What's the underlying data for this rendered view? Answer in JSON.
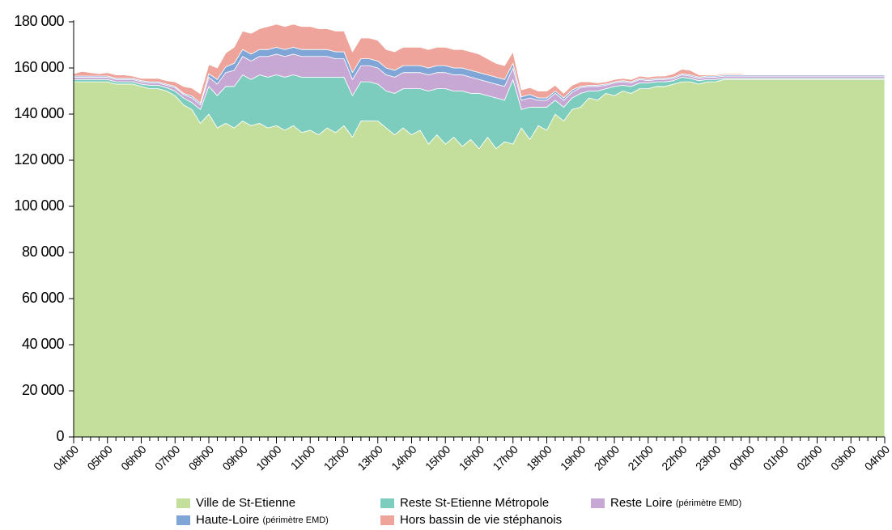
{
  "chart_data": {
    "type": "stacked_area",
    "categories": [
      "04h00",
      null,
      null,
      null,
      "05h00",
      null,
      null,
      null,
      "06h00",
      null,
      null,
      null,
      "07h00",
      null,
      null,
      null,
      "08h00",
      null,
      null,
      null,
      "09h00",
      null,
      null,
      null,
      "10h00",
      null,
      null,
      null,
      "11h00",
      null,
      null,
      null,
      "12h00",
      null,
      null,
      null,
      "13h00",
      null,
      null,
      null,
      "14h00",
      null,
      null,
      null,
      "15h00",
      null,
      null,
      null,
      "16h00",
      null,
      null,
      null,
      "17h00",
      null,
      null,
      null,
      "18h00",
      null,
      null,
      null,
      "19h00",
      null,
      null,
      null,
      "20h00",
      null,
      null,
      null,
      "21h00",
      null,
      null,
      null,
      "22h00",
      null,
      null,
      null,
      "23h00",
      null,
      null,
      null,
      "00h00",
      null,
      null,
      null,
      "01h00",
      null,
      null,
      null,
      "02h00",
      null,
      null,
      null,
      "03h00",
      null,
      null,
      null,
      "04h00"
    ],
    "series": [
      {
        "name": "Ville de St-Etienne",
        "color": "#c4df9b",
        "values": [
          154000,
          154000,
          154000,
          154000,
          154000,
          153000,
          153000,
          153000,
          152000,
          151000,
          151000,
          150000,
          148000,
          144000,
          142000,
          136000,
          140000,
          134000,
          136000,
          134000,
          137000,
          135000,
          136000,
          134000,
          135000,
          133000,
          135000,
          132000,
          133000,
          131000,
          134000,
          132000,
          135000,
          130000,
          137000,
          137000,
          137000,
          134000,
          131000,
          134000,
          131000,
          133000,
          127000,
          131000,
          127000,
          130000,
          126000,
          129000,
          125000,
          130000,
          125000,
          128000,
          127000,
          134000,
          129000,
          135000,
          133000,
          140000,
          137000,
          142000,
          143000,
          147000,
          146000,
          149000,
          148000,
          150000,
          149000,
          151000,
          151000,
          152000,
          152000,
          153000,
          154000,
          154000,
          153000,
          154000,
          154000,
          155000,
          155000,
          155000,
          155000,
          155000,
          155000,
          155000,
          155000,
          155000,
          155000,
          155000,
          155000,
          155000,
          155000,
          155000,
          155000,
          155000,
          155000,
          155000,
          155000
        ]
      },
      {
        "name": "Reste St-Etienne Métropole",
        "color": "#7dcdbf",
        "values": [
          1000,
          1000,
          1000,
          1000,
          1000,
          1000,
          1000,
          1000,
          1000,
          1500,
          1500,
          1500,
          2000,
          3000,
          3000,
          6000,
          12000,
          14000,
          16000,
          18000,
          20000,
          20000,
          21000,
          22000,
          22000,
          23000,
          22000,
          24000,
          23000,
          25000,
          22000,
          24000,
          21000,
          18000,
          17000,
          17000,
          16000,
          16000,
          18000,
          17000,
          20000,
          18000,
          23000,
          20000,
          24000,
          20000,
          24000,
          20000,
          24000,
          18000,
          22000,
          18000,
          28000,
          8000,
          14000,
          8000,
          10000,
          6000,
          6000,
          5000,
          6000,
          3000,
          4000,
          2000,
          4000,
          2500,
          3000,
          2500,
          2500,
          2000,
          2000,
          1500,
          2000,
          1500,
          1500,
          1000,
          1000,
          500,
          500,
          500,
          500,
          500,
          500,
          500,
          500,
          500,
          500,
          500,
          500,
          500,
          500,
          500,
          500,
          500,
          500,
          500,
          500
        ]
      },
      {
        "name": "Reste Loire (périmètre EMD)",
        "color": "#c7a8d4",
        "values": [
          1000,
          1000,
          1000,
          1000,
          1000,
          1000,
          1000,
          1000,
          1000,
          1000,
          1000,
          1000,
          1500,
          1500,
          2000,
          2000,
          4000,
          5000,
          6000,
          7000,
          8000,
          8000,
          8000,
          9000,
          9000,
          9000,
          9000,
          9000,
          9000,
          9000,
          9000,
          8000,
          8000,
          7000,
          7000,
          7000,
          7000,
          7000,
          7000,
          7000,
          7000,
          7000,
          7000,
          7000,
          7000,
          7000,
          7000,
          7000,
          6000,
          6000,
          6000,
          6000,
          5000,
          4000,
          4000,
          3000,
          3000,
          3000,
          3000,
          2500,
          2500,
          2000,
          2000,
          1500,
          1500,
          1500,
          1500,
          1500,
          1000,
          1000,
          1000,
          1000,
          1000,
          1000,
          1000,
          1000,
          1000,
          1000,
          1000,
          1000,
          1000,
          1000,
          1000,
          1000,
          1000,
          1000,
          1000,
          1000,
          1000,
          1000,
          1000,
          1000,
          1000,
          1000,
          1000,
          1000,
          1000
        ]
      },
      {
        "name": "Haute-Loire (périmètre EMD)",
        "color": "#7fa6d6",
        "values": [
          500,
          500,
          500,
          500,
          500,
          500,
          500,
          500,
          500,
          500,
          500,
          500,
          500,
          500,
          800,
          800,
          1500,
          2000,
          2500,
          3000,
          3000,
          3000,
          3000,
          3000,
          3000,
          3000,
          3000,
          3000,
          3000,
          3000,
          3000,
          3000,
          3000,
          3000,
          3000,
          3000,
          3000,
          3000,
          3000,
          3000,
          3000,
          3000,
          3000,
          3000,
          3000,
          3000,
          3000,
          3000,
          3000,
          3000,
          3000,
          3000,
          2000,
          1500,
          1500,
          1000,
          1000,
          1000,
          1000,
          1000,
          500,
          500,
          500,
          500,
          500,
          500,
          500,
          500,
          500,
          500,
          500,
          500,
          500,
          500,
          500,
          500,
          500,
          500,
          500,
          500,
          500,
          500,
          500,
          500,
          500,
          500,
          500,
          500,
          500,
          500,
          500,
          500,
          500,
          500,
          500,
          500,
          500
        ]
      },
      {
        "name": "Hors bassin de vie stéphanois",
        "color": "#eea49a",
        "values": [
          1000,
          2000,
          1500,
          1000,
          1500,
          1500,
          1500,
          1000,
          1000,
          1500,
          1500,
          1500,
          2000,
          3000,
          3500,
          4000,
          4000,
          5000,
          6000,
          7000,
          8000,
          9000,
          9000,
          10000,
          10000,
          10000,
          10000,
          10000,
          10000,
          9000,
          9000,
          9000,
          9000,
          9000,
          9000,
          9000,
          9000,
          8000,
          8000,
          8000,
          8000,
          8000,
          8000,
          8000,
          8000,
          8000,
          8000,
          8000,
          8000,
          7000,
          6000,
          6000,
          5000,
          3000,
          3000,
          3000,
          3000,
          2500,
          2000,
          2000,
          2000,
          1500,
          1000,
          1000,
          1000,
          1000,
          1000,
          1000,
          1000,
          1000,
          1000,
          1500,
          2000,
          2000,
          1000,
          500,
          500,
          500,
          500,
          500,
          0,
          0,
          0,
          0,
          0,
          0,
          0,
          0,
          0,
          0,
          0,
          0,
          0,
          0,
          0,
          0,
          0
        ]
      }
    ],
    "ylim": [
      0,
      180000
    ],
    "yticks": [
      0,
      {
        "value": 20000,
        "label": "20 000"
      },
      {
        "value": 40000,
        "label": "40 000"
      },
      {
        "value": 60000,
        "label": "60 000"
      },
      {
        "value": 80000,
        "label": "80 000"
      },
      {
        "value": 100000,
        "label": "100 000"
      },
      {
        "value": 120000,
        "label": "120 000"
      },
      {
        "value": 140000,
        "label": "140 000"
      },
      {
        "value": 160000,
        "label": "160 000"
      },
      {
        "value": 180000,
        "label": "180 000"
      }
    ],
    "grid": false,
    "legend": "bottom"
  }
}
